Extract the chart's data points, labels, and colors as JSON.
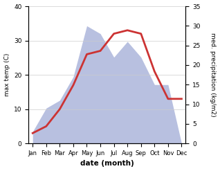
{
  "months": [
    "Jan",
    "Feb",
    "Mar",
    "Apr",
    "May",
    "Jun",
    "Jul",
    "Aug",
    "Sep",
    "Oct",
    "Nov",
    "Dec"
  ],
  "temperature": [
    3,
    5,
    10,
    17,
    26,
    27,
    32,
    33,
    32,
    21,
    13,
    13
  ],
  "precipitation": [
    3,
    9,
    11,
    17,
    30,
    28,
    22,
    26,
    22,
    15,
    15,
    0
  ],
  "temp_color": "#cc3333",
  "precip_fill_color": "#b8c0e0",
  "temp_ylim": [
    0,
    40
  ],
  "precip_ylim": [
    0,
    35
  ],
  "xlabel": "date (month)",
  "ylabel_left": "max temp (C)",
  "ylabel_right": "med. precipitation (kg/m2)",
  "temp_yticks": [
    0,
    10,
    20,
    30,
    40
  ],
  "precip_yticks": [
    0,
    5,
    10,
    15,
    20,
    25,
    30,
    35
  ],
  "bg_color": "#ffffff"
}
